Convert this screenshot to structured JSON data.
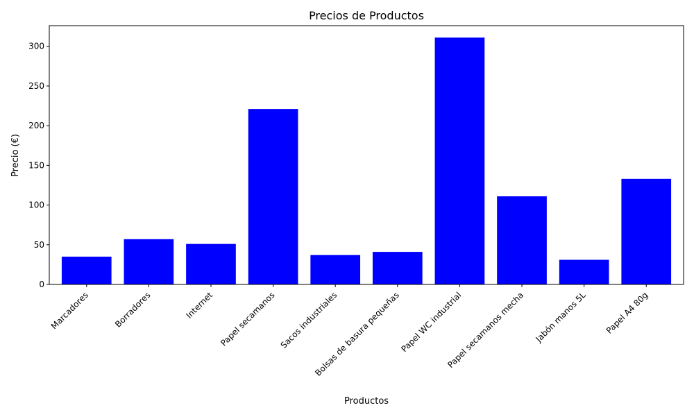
{
  "chart_data": {
    "type": "bar",
    "title": "Precios de Productos",
    "xlabel": "Productos",
    "ylabel": "Precio (€)",
    "categories": [
      "Marcadores",
      "Borradores",
      "Internet",
      "Papel secamanos",
      "Sacos industriales",
      "Bolsas de basura pequeñas",
      "Papel WC industrial",
      "Papel secamanos mecha",
      "Jabón manos 5L",
      "Papel A4 80g"
    ],
    "values": [
      35,
      57,
      51,
      221,
      37,
      41,
      311,
      111,
      31,
      133
    ],
    "ylim": [
      0,
      326
    ],
    "yticks": [
      0,
      50,
      100,
      150,
      200,
      250,
      300
    ],
    "bar_color": "#0000ff",
    "grid": false,
    "legend": "none"
  }
}
